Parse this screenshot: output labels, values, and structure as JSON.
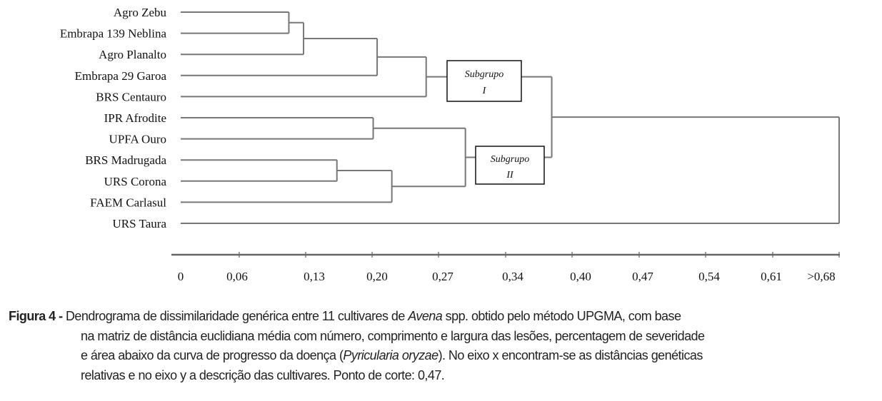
{
  "chart_data": {
    "type": "dendrogram",
    "method": "UPGMA",
    "leaves": [
      "Agro Zebu",
      "Embrapa 139 Neblina",
      "Agro Planalto",
      "Embrapa 29 Garoa",
      "BRS Centauro",
      "IPR Afrodite",
      "UPFA Ouro",
      "BRS Madrugada",
      "URS Corona",
      "FAEM Carlasul",
      "URS Taura"
    ],
    "merges": [
      {
        "id": "n1",
        "children": [
          0,
          1
        ],
        "height": 0.119
      },
      {
        "id": "n2",
        "children": [
          "n1",
          2
        ],
        "height": 0.134
      },
      {
        "id": "n3",
        "children": [
          "n2",
          3
        ],
        "height": 0.209
      },
      {
        "id": "n4",
        "children": [
          "n3",
          4
        ],
        "height": 0.259
      },
      {
        "id": "n5",
        "children": [
          5,
          6
        ],
        "height": 0.205
      },
      {
        "id": "n6",
        "children": [
          7,
          8
        ],
        "height": 0.168
      },
      {
        "id": "n7",
        "children": [
          "n6",
          9
        ],
        "height": 0.224
      },
      {
        "id": "n8",
        "children": [
          "n5",
          "n7"
        ],
        "height": 0.299
      },
      {
        "id": "n9",
        "children": [
          "n4",
          "n8"
        ],
        "height": 0.387
      },
      {
        "id": "n10",
        "children": [
          "n9",
          10
        ],
        "height": 0.68
      }
    ],
    "xaxis": {
      "ticks": [
        "0",
        "0,06",
        "0,13",
        "0,20",
        "0,27",
        "0,34",
        "0,40",
        "0,47",
        "0,54",
        "0,61",
        ">0,68"
      ],
      "range": [
        0,
        0.68
      ]
    },
    "groups": [
      {
        "label_line1": "Subgrupo",
        "label_line2": "I"
      },
      {
        "label_line1": "Subgrupo",
        "label_line2": "II"
      }
    ]
  },
  "caption": {
    "label": "Figura 4 -",
    "line1_a": " Dendrograma de dissimilaridade genérica entre 11 cultivares de ",
    "line1_italic": "Avena",
    "line1_b": " spp. obtido pelo método UPGMA, com base",
    "line2": "na matriz de distância euclidiana média com número, comprimento e largura das lesões, percentagem de severidade",
    "line3_a": "e área abaixo da curva de progresso da doença (",
    "line3_italic": "Pyricularia oryzae",
    "line3_b": "). No eixo x encontram-se as distâncias genéticas",
    "line4": "relativas e no eixo y a descrição das cultivares. Ponto de corte: 0,47."
  }
}
